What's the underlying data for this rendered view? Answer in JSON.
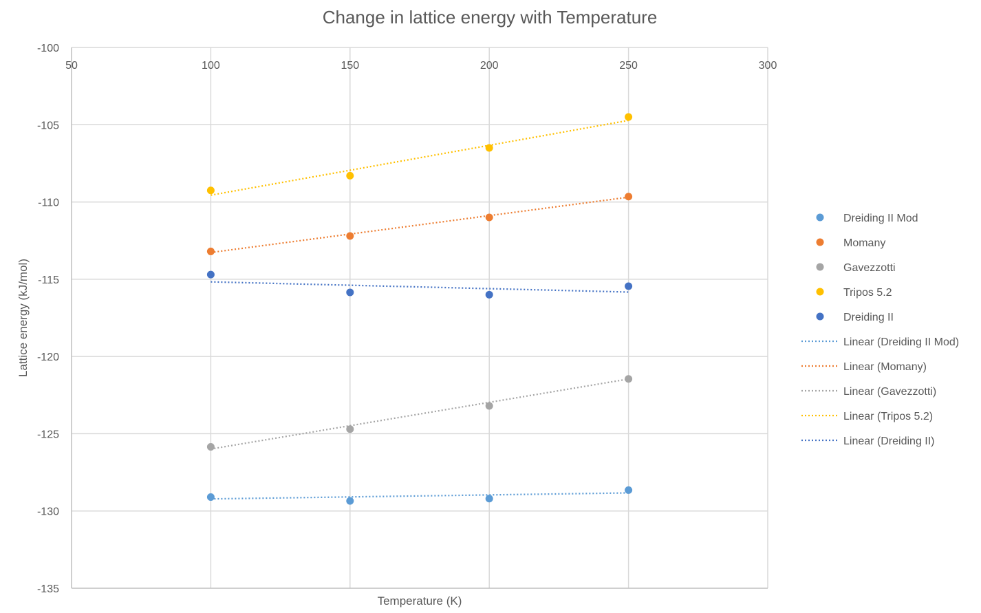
{
  "chart_data": {
    "type": "scatter",
    "title": "Change in lattice energy with Temperature",
    "xlabel": "Temperature (K)",
    "ylabel": "Lattice energy  (kJ/mol)",
    "xlim": [
      50,
      300
    ],
    "ylim": [
      -135,
      -100
    ],
    "x_ticks": [
      50,
      100,
      150,
      200,
      250,
      300
    ],
    "y_ticks": [
      -100,
      -105,
      -110,
      -115,
      -120,
      -125,
      -130,
      -135
    ],
    "x_tick_labels": [
      "50",
      "100",
      "150",
      "200",
      "250",
      "300"
    ],
    "y_tick_labels": [
      "-100",
      "-105",
      "-110",
      "-115",
      "-120",
      "-125",
      "-130",
      "-135"
    ],
    "grid": true,
    "x_axis_position": "top",
    "legend_position": "right",
    "series": [
      {
        "name": "Dreiding II Mod",
        "color": "#5b9bd5",
        "x": [
          100,
          150,
          200,
          250
        ],
        "y": [
          -129.1,
          -129.35,
          -129.2,
          -128.65
        ]
      },
      {
        "name": "Momany",
        "color": "#ed7d31",
        "x": [
          100,
          150,
          200,
          250
        ],
        "y": [
          -113.2,
          -112.2,
          -111.0,
          -109.65
        ]
      },
      {
        "name": "Gavezzotti",
        "color": "#a5a5a5",
        "x": [
          100,
          150,
          200,
          250
        ],
        "y": [
          -125.85,
          -124.7,
          -123.2,
          -121.45
        ]
      },
      {
        "name": "Tripos 5.2",
        "color": "#ffc000",
        "x": [
          100,
          150,
          200,
          250
        ],
        "y": [
          -109.25,
          -108.3,
          -106.5,
          -104.5
        ]
      },
      {
        "name": "Dreiding II",
        "color": "#4472c4",
        "x": [
          100,
          150,
          200,
          250
        ],
        "y": [
          -114.7,
          -115.85,
          -116.0,
          -115.45
        ]
      }
    ],
    "trendlines": [
      {
        "name": "Linear (Dreiding II Mod)",
        "color": "#5b9bd5",
        "x": [
          100,
          250
        ],
        "y": [
          -129.22,
          -128.83
        ]
      },
      {
        "name": "Linear (Momany)",
        "color": "#ed7d31",
        "x": [
          100,
          250
        ],
        "y": [
          -113.27,
          -109.69
        ]
      },
      {
        "name": "Linear (Gavezzotti)",
        "color": "#a5a5a5",
        "x": [
          100,
          250
        ],
        "y": [
          -125.99,
          -121.46
        ]
      },
      {
        "name": "Linear (Tripos 5.2)",
        "color": "#ffc000",
        "x": [
          100,
          250
        ],
        "y": [
          -109.56,
          -104.72
        ]
      },
      {
        "name": "Linear (Dreiding II)",
        "color": "#4472c4",
        "x": [
          100,
          250
        ],
        "y": [
          -115.17,
          -115.83
        ]
      }
    ]
  }
}
